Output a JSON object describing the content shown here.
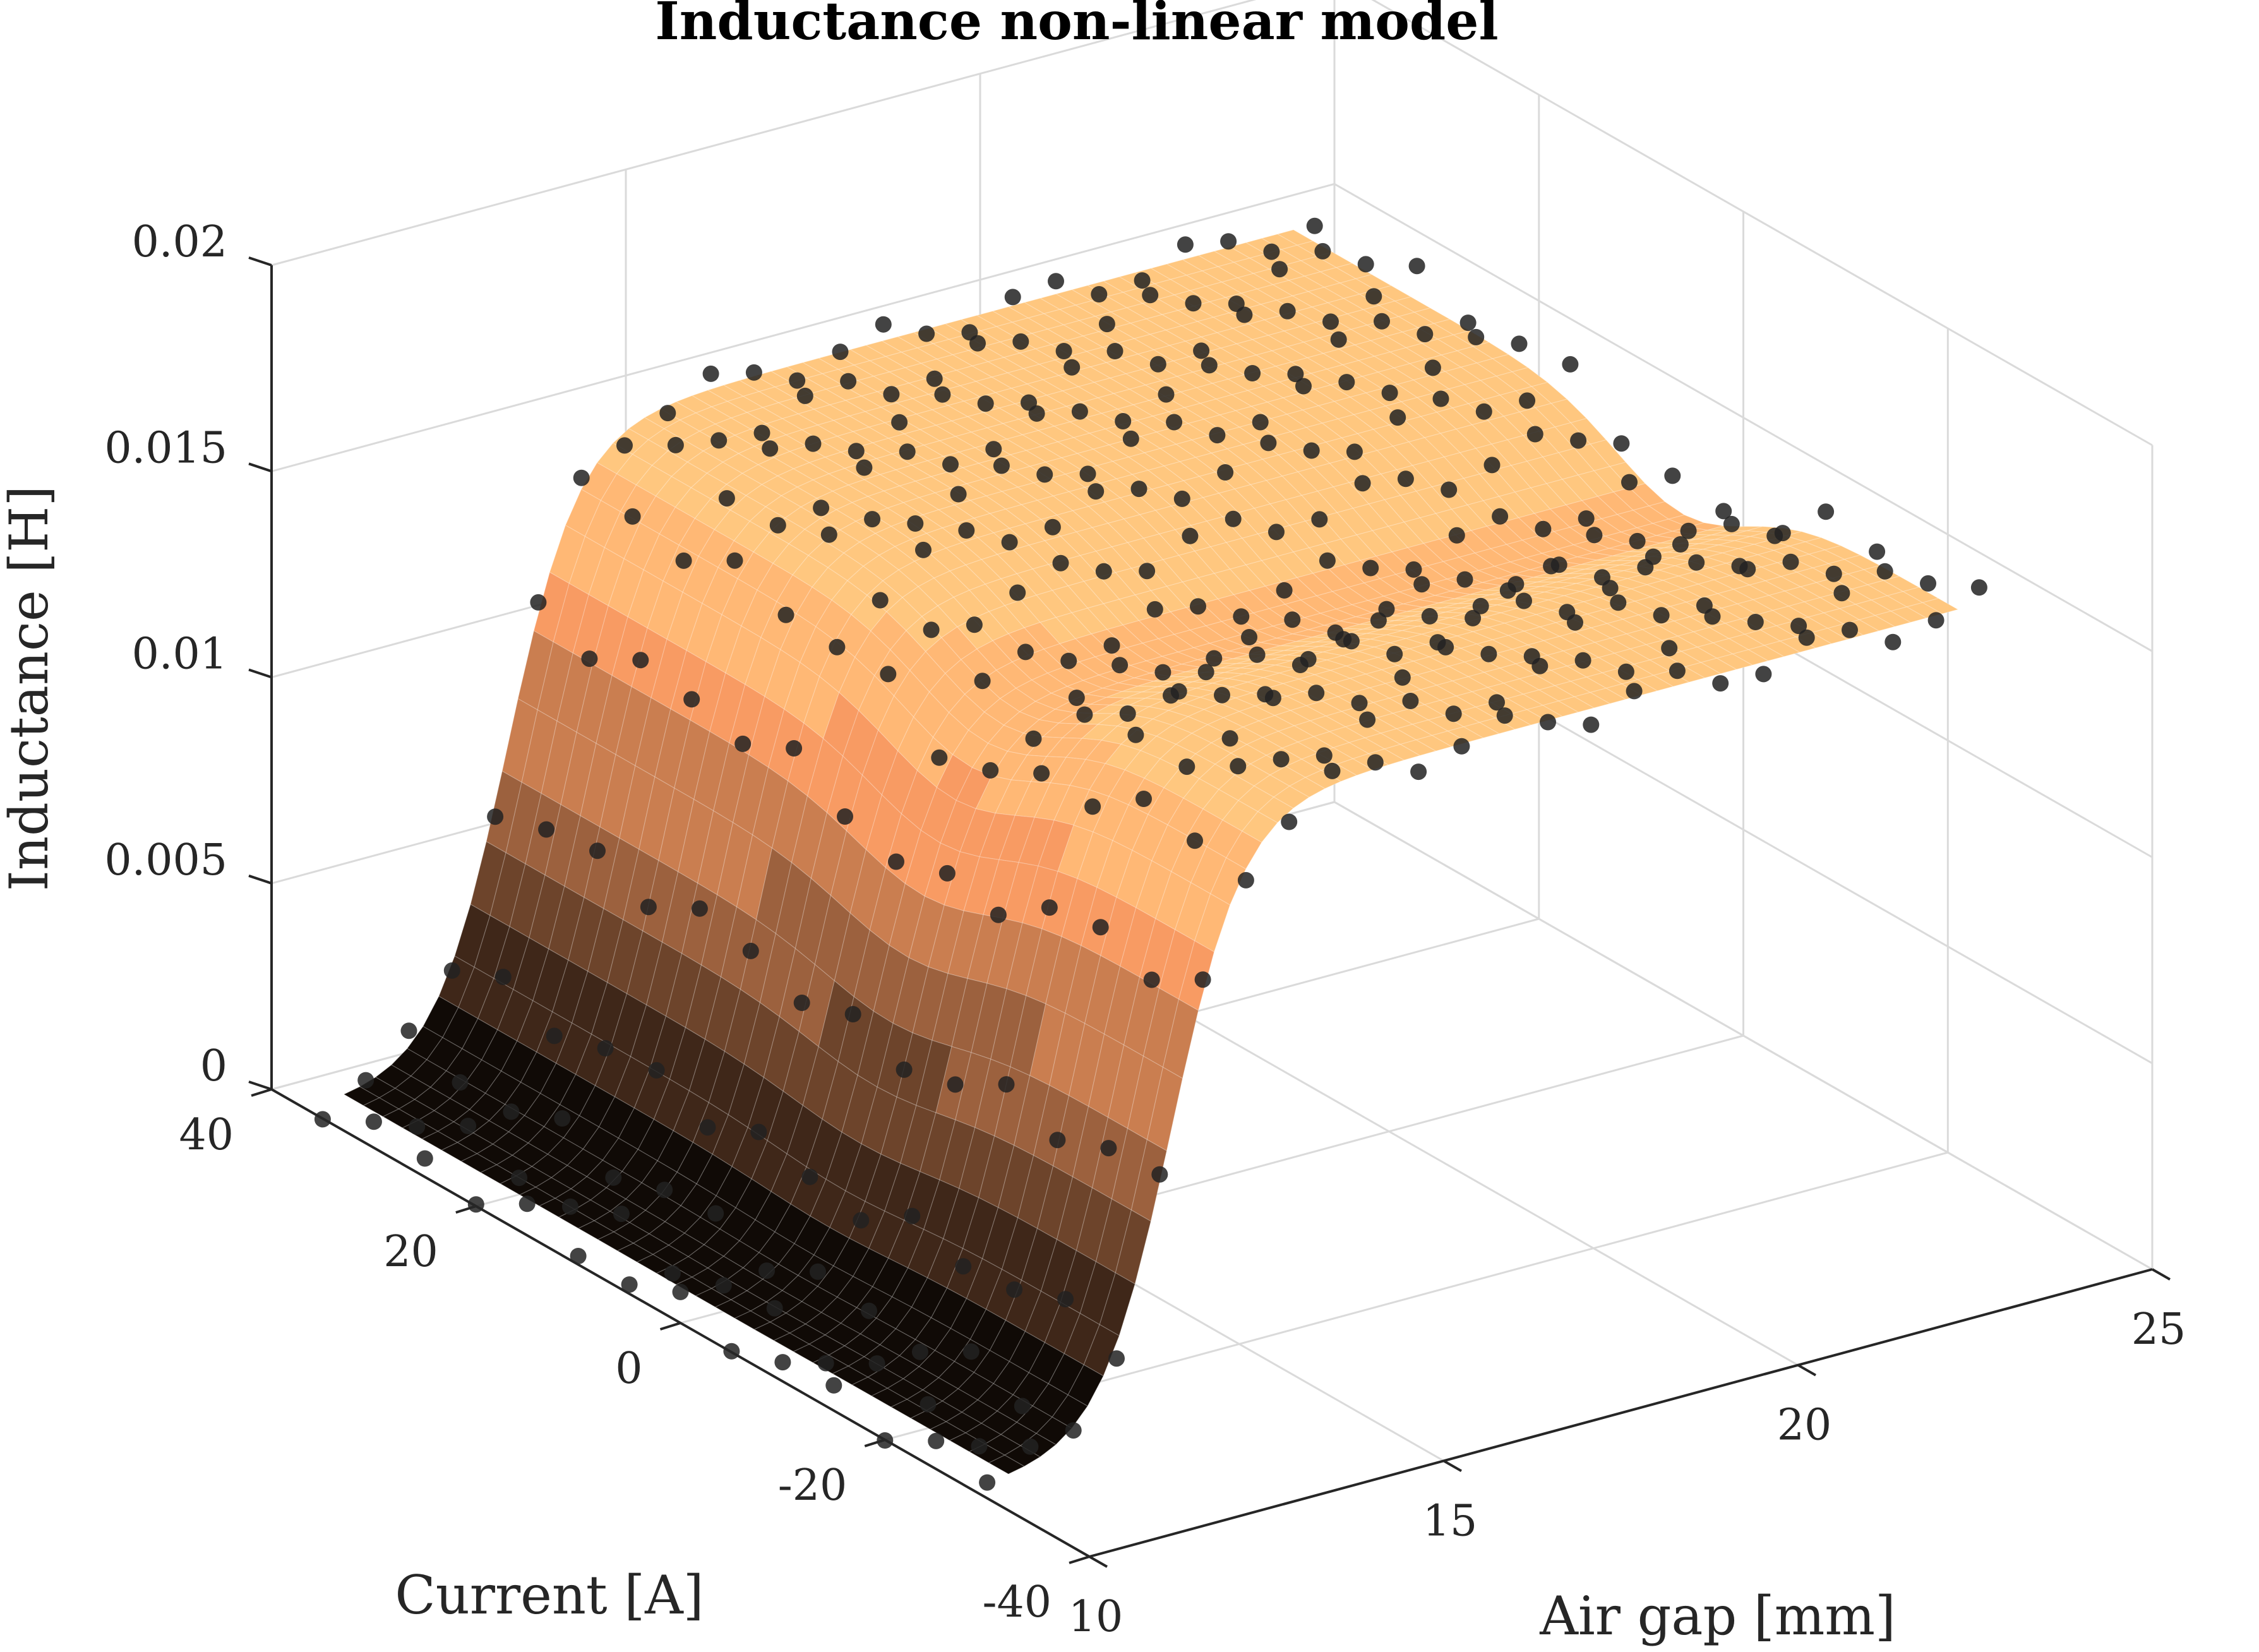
{
  "chart_data": {
    "type": "surface3d",
    "title": "Inductance non-linear model",
    "xlabel": "Air gap [mm]",
    "ylabel": "Current [A]",
    "zlabel": "Inductance [H]",
    "xlim": [
      10,
      25
    ],
    "ylim": [
      -40,
      40
    ],
    "zlim": [
      0,
      0.02
    ],
    "xticks": [
      "10",
      "15",
      "20",
      "25"
    ],
    "yticks": [
      "-40",
      "-20",
      "0",
      "20",
      "40"
    ],
    "zticks": [
      "0",
      "0.005",
      "0.01",
      "0.015",
      "0.02"
    ],
    "grid": true,
    "colormap": "copper",
    "model": {
      "description_of_surface": "sigmoid step along air gap",
      "low_value": 0.0003,
      "high_value": 0.0152,
      "step_center_gap": 12.6,
      "step_width_gap": 0.5,
      "current_dip_center": -3,
      "current_dip_depth": 0.0015,
      "current_dip_width": 9
    },
    "series": [
      {
        "kind": "surface",
        "x_range": [
          10.3,
          23.7
        ],
        "y_range": [
          -30,
          35
        ]
      },
      {
        "kind": "scatter",
        "marker_color": "#222222",
        "x_range": [
          10,
          24
        ],
        "y_range": [
          -30,
          35
        ],
        "nx": 24,
        "ny": 14
      }
    ]
  }
}
